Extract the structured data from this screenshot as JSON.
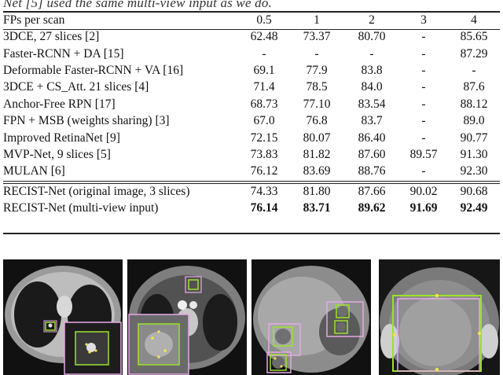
{
  "caption_fragment": "Net [5] used the same multi-view input as we do.",
  "table": {
    "header": {
      "label": "FPs per scan",
      "cols": [
        "0.5",
        "1",
        "2",
        "3",
        "4"
      ]
    },
    "rows": [
      {
        "method": "3DCE, 27 slices [2]",
        "vals": [
          "62.48",
          "73.37",
          "80.70",
          "-",
          "85.65"
        ]
      },
      {
        "method": "Faster-RCNN + DA [15]",
        "vals": [
          "-",
          "-",
          "-",
          "-",
          "87.29"
        ]
      },
      {
        "method": "Deformable Faster-RCNN + VA [16]",
        "vals": [
          "69.1",
          "77.9",
          "83.8",
          "-",
          "-"
        ]
      },
      {
        "method": "3DCE + CS_Att. 21 slices [4]",
        "vals": [
          "71.4",
          "78.5",
          "84.0",
          "-",
          "87.6"
        ]
      },
      {
        "method": "Anchor-Free RPN [17]",
        "vals": [
          "68.73",
          "77.10",
          "83.54",
          "-",
          "88.12"
        ]
      },
      {
        "method": "FPN + MSB (weights sharing) [3]",
        "vals": [
          "67.0",
          "76.8",
          "83.7",
          "-",
          "89.0"
        ]
      },
      {
        "method": "Improved RetinaNet [9]",
        "vals": [
          "72.15",
          "80.07",
          "86.40",
          "-",
          "90.77"
        ]
      },
      {
        "method": "MVP-Net, 9 slices [5]",
        "vals": [
          "73.83",
          "81.82",
          "87.60",
          "89.57",
          "91.30"
        ]
      },
      {
        "method": "MULAN [6]",
        "vals": [
          "76.12",
          "83.69",
          "88.76",
          "-",
          "92.30"
        ]
      }
    ],
    "ours": [
      {
        "method": "RECIST-Net (original image, 3 slices)",
        "vals": [
          "74.33",
          "81.80",
          "87.66",
          "90.02",
          "90.68"
        ]
      },
      {
        "method": "RECIST-Net (multi-view input)",
        "vals": [
          "76.14",
          "83.71",
          "89.62",
          "91.69",
          "92.49"
        ]
      }
    ]
  },
  "colors": {
    "gt_box": "#9be12a",
    "pred_box": "#e6a8e6",
    "marker": "#f2e44a"
  }
}
